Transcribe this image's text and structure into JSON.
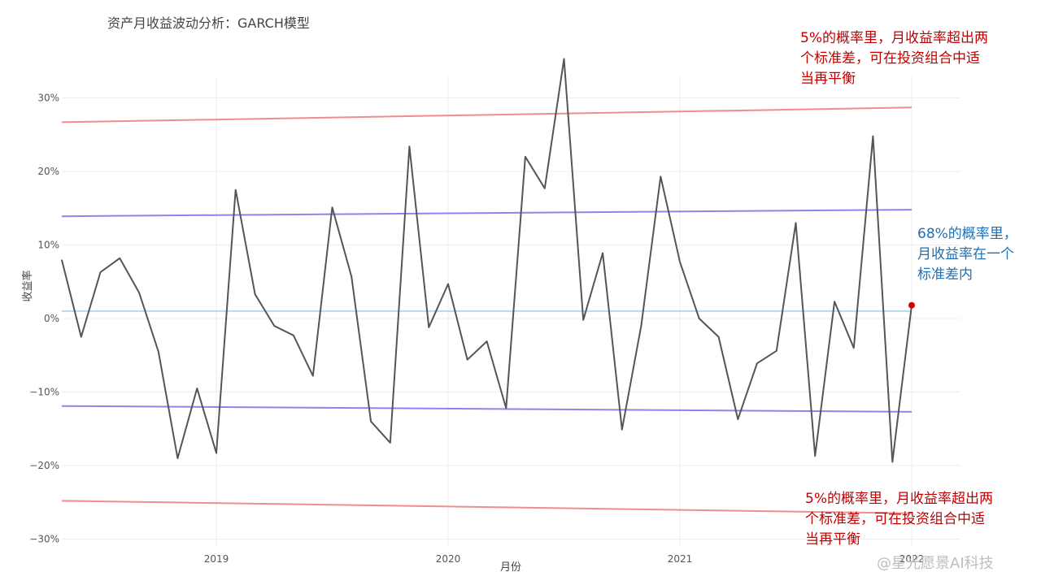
{
  "chart_data": {
    "type": "line",
    "title": "资产月收益波动分析：GARCH模型",
    "xlabel": "月份",
    "ylabel": "收益率",
    "ylim": [
      -30,
      36
    ],
    "y_ticks": [
      -30,
      -20,
      -10,
      0,
      10,
      20,
      30
    ],
    "y_tick_labels": [
      "−30%",
      "−20%",
      "−10%",
      "0%",
      "10%",
      "20%",
      "30%"
    ],
    "x_ticks": [
      2019,
      2020,
      2021,
      2022
    ],
    "x_tick_labels": [
      "2019",
      "2020",
      "2021",
      "2022"
    ],
    "xlim": [
      2018.33,
      2022.0
    ],
    "grid": true,
    "series": [
      {
        "name": "",
        "color": "#555555",
        "x": [
          2018.333,
          2018.417,
          2018.5,
          2018.583,
          2018.667,
          2018.75,
          2018.833,
          2018.917,
          2019.0,
          2019.083,
          2019.167,
          2019.25,
          2019.333,
          2019.417,
          2019.5,
          2019.583,
          2019.667,
          2019.75,
          2019.833,
          2019.917,
          2020.0,
          2020.083,
          2020.167,
          2020.25,
          2020.333,
          2020.417,
          2020.5,
          2020.583,
          2020.667,
          2020.75,
          2020.833,
          2020.917,
          2021.0,
          2021.083,
          2021.167,
          2021.25,
          2021.333,
          2021.417,
          2021.5,
          2021.583,
          2021.667,
          2021.75,
          2021.833,
          2021.917,
          2022.0
        ],
        "values": [
          8.0,
          -2.5,
          6.3,
          8.2,
          3.5,
          -4.5,
          -19.0,
          -9.5,
          -18.3,
          17.5,
          3.3,
          -1.0,
          -2.3,
          -7.8,
          15.1,
          5.7,
          -14.0,
          -16.9,
          23.4,
          -1.2,
          4.7,
          -5.6,
          -3.1,
          -12.2,
          22.0,
          17.7,
          35.3,
          -0.2,
          8.9,
          -15.1,
          -1.0,
          19.3,
          7.7,
          0.0,
          -2.5,
          -13.7,
          -6.1,
          -4.4,
          13.0,
          -18.7,
          2.3,
          -4.0,
          24.8,
          -19.5,
          1.8
        ]
      },
      {
        "name": "",
        "color": "#f08080",
        "x": [
          2018.333,
          2022.0
        ],
        "values": [
          26.7,
          28.7
        ]
      },
      {
        "name": "",
        "color": "#7b7bea",
        "x": [
          2018.333,
          2022.0
        ],
        "values": [
          13.9,
          14.8
        ]
      },
      {
        "name": "",
        "color": "#add8e6",
        "x": [
          2018.333,
          2022.0
        ],
        "values": [
          1.0,
          1.0
        ]
      },
      {
        "name": "",
        "color": "#7b7bea",
        "x": [
          2018.333,
          2022.0
        ],
        "values": [
          -11.9,
          -12.7
        ]
      },
      {
        "name": "",
        "color": "#f08080",
        "x": [
          2018.333,
          2022.0
        ],
        "values": [
          -24.8,
          -26.5
        ]
      }
    ],
    "highlight_point": {
      "x": 2022.0,
      "value": 1.8,
      "color": "#d40000"
    }
  },
  "annotations": {
    "top": {
      "text": "5%的概率里，月收益率超出两\n个标准差，可在投资组合中适\n当再平衡",
      "color": "#c00000"
    },
    "middle": {
      "text": "68%的概率里，\n月收益率在一个\n标准差内",
      "color": "#1f6fb4"
    },
    "bottom": {
      "text": "5%的概率里，月收益率超出两\n个标准差，可在投资组合中适\n当再平衡",
      "color": "#c00000"
    }
  },
  "watermark": "@星光愿景AI科技"
}
